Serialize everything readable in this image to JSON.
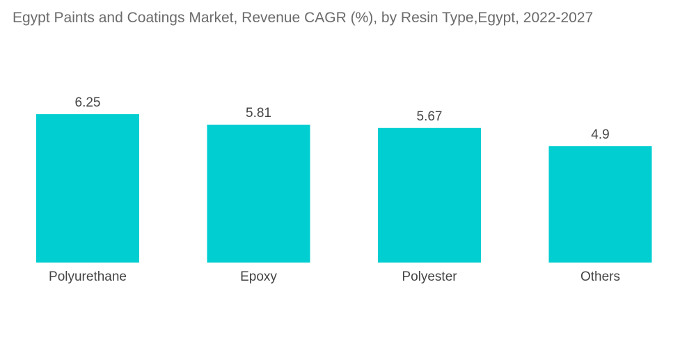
{
  "chart_data": {
    "type": "bar",
    "title": "Egypt Paints and Coatings Market, Revenue CAGR (%), by Resin Type,Egypt, 2022-2027",
    "xlabel": "",
    "ylabel": "",
    "categories": [
      "Polyurethane",
      "Epoxy",
      "Polyester",
      "Others"
    ],
    "values": [
      6.25,
      5.81,
      5.67,
      4.9
    ],
    "value_labels": [
      "6.25",
      "5.81",
      "5.67",
      "4.9"
    ],
    "ylim": [
      0,
      6.25
    ],
    "grid": false,
    "legend": "none",
    "bar_color": "#00CED1"
  }
}
